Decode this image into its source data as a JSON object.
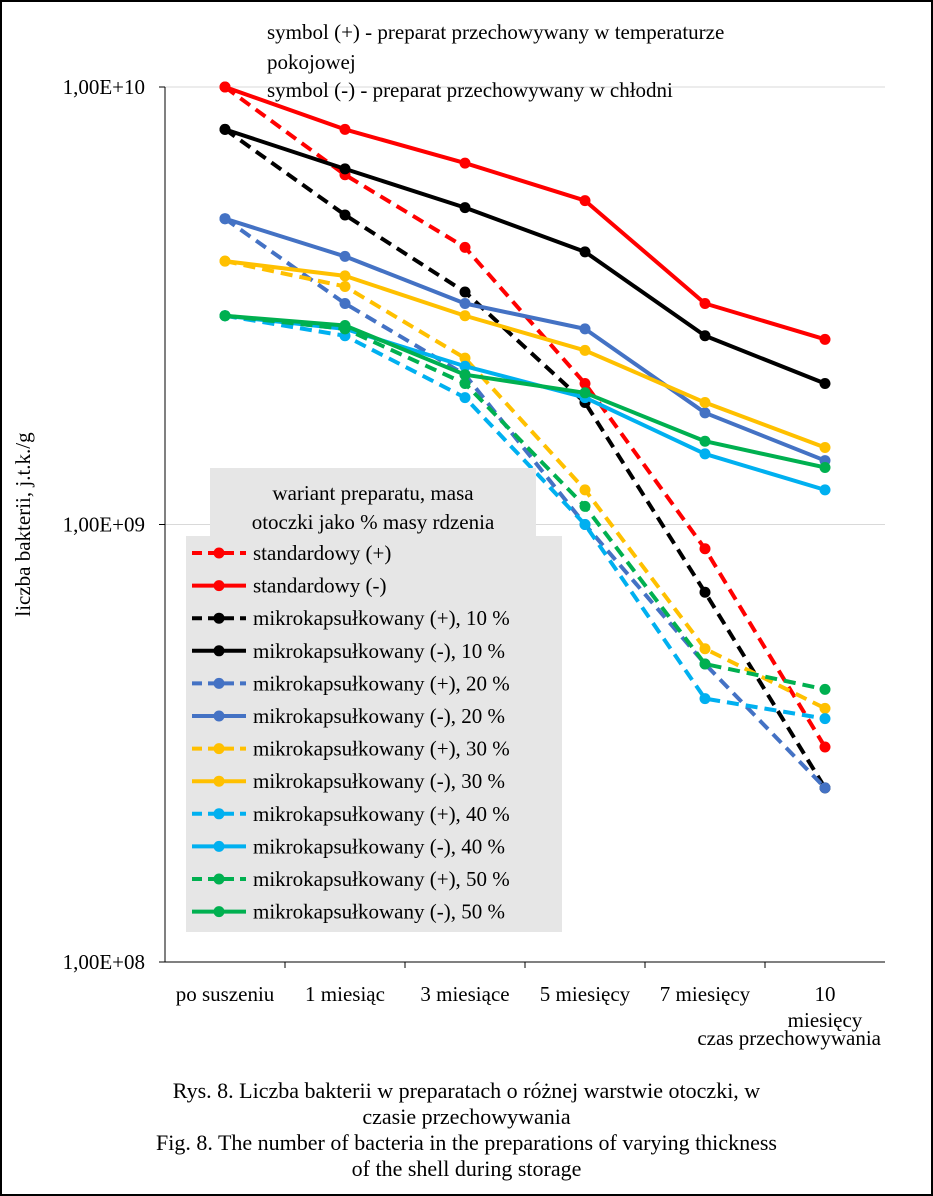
{
  "chart_data": {
    "type": "line",
    "y_scale": "log",
    "ylim": [
      100000000,
      10000000000
    ],
    "ylabel": "liczba bakterii, j.t.k./g",
    "xlabel": "czas przechowywania",
    "y_ticks": [
      {
        "value": 10000000000,
        "label": "1,00E+10"
      },
      {
        "value": 1000000000,
        "label": "1,00E+09"
      },
      {
        "value": 100000000,
        "label": "1,00E+08"
      }
    ],
    "categories": [
      "po suszeniu",
      "1 miesiąc",
      "3 miesiące",
      "5 miesięcy",
      "7 miesięcy",
      "10 miesięcy"
    ],
    "annotation": [
      "symbol (+) - preparat przechowywany w temperaturze",
      "pokojowej",
      "symbol (-) - preparat przechowywany w chłodni"
    ],
    "legend_title": [
      "wariant preparatu, masa",
      "otoczki jako % masy rdzenia"
    ],
    "legend_position": "center-left",
    "series": [
      {
        "name": "standardowy (+)",
        "color": "#ff0000",
        "dash": true,
        "values": [
          10000000000,
          6300000000,
          4300000000,
          2100000000,
          880000000,
          310000000
        ]
      },
      {
        "name": "standardowy (-)",
        "color": "#ff0000",
        "dash": false,
        "values": [
          10000000000,
          8000000000,
          6700000000,
          5500000000,
          3200000000,
          2650000000
        ]
      },
      {
        "name": "mikrokapsułkowany (+), 10 %",
        "color": "#000000",
        "dash": true,
        "values": [
          8000000000,
          5100000000,
          3400000000,
          1900000000,
          700000000,
          250000000
        ]
      },
      {
        "name": "mikrokapsułkowany (-), 10 %",
        "color": "#000000",
        "dash": false,
        "values": [
          8000000000,
          6500000000,
          5300000000,
          4200000000,
          2700000000,
          2100000000
        ]
      },
      {
        "name": "mikrokapsułkowany (+), 20 %",
        "color": "#4472c4",
        "dash": true,
        "values": [
          5000000000,
          3200000000,
          2200000000,
          1000000000,
          480000000,
          250000000
        ]
      },
      {
        "name": "mikrokapsułkowany (-), 20 %",
        "color": "#4472c4",
        "dash": false,
        "values": [
          5000000000,
          4100000000,
          3200000000,
          2800000000,
          1800000000,
          1400000000
        ]
      },
      {
        "name": "mikrokapsułkowany (+), 30 %",
        "color": "#ffc000",
        "dash": true,
        "values": [
          4000000000,
          3500000000,
          2400000000,
          1200000000,
          520000000,
          380000000
        ]
      },
      {
        "name": "mikrokapsułkowany (-), 30 %",
        "color": "#ffc000",
        "dash": false,
        "values": [
          4000000000,
          3700000000,
          3000000000,
          2500000000,
          1900000000,
          1500000000
        ]
      },
      {
        "name": "mikrokapsułkowany (+), 40 %",
        "color": "#00b0f0",
        "dash": true,
        "values": [
          3000000000,
          2700000000,
          1950000000,
          1000000000,
          400000000,
          360000000
        ]
      },
      {
        "name": "mikrokapsułkowany (-), 40 %",
        "color": "#00b0f0",
        "dash": false,
        "values": [
          3000000000,
          2800000000,
          2300000000,
          1950000000,
          1450000000,
          1200000000
        ]
      },
      {
        "name": "mikrokapsułkowany (+), 50 %",
        "color": "#00b050",
        "dash": true,
        "values": [
          3000000000,
          2800000000,
          2100000000,
          1100000000,
          480000000,
          420000000
        ]
      },
      {
        "name": "mikrokapsułkowany (-), 50 %",
        "color": "#00b050",
        "dash": false,
        "values": [
          3000000000,
          2850000000,
          2200000000,
          2000000000,
          1550000000,
          1350000000
        ]
      }
    ]
  },
  "caption": {
    "pl_line1": "Rys. 8. Liczba bakterii w preparatach o różnej warstwie otoczki, w",
    "pl_line2": "czasie przechowywania",
    "en_line1": "Fig. 8. The number of bacteria in the preparations of varying thickness",
    "en_line2": "of the shell during storage"
  }
}
